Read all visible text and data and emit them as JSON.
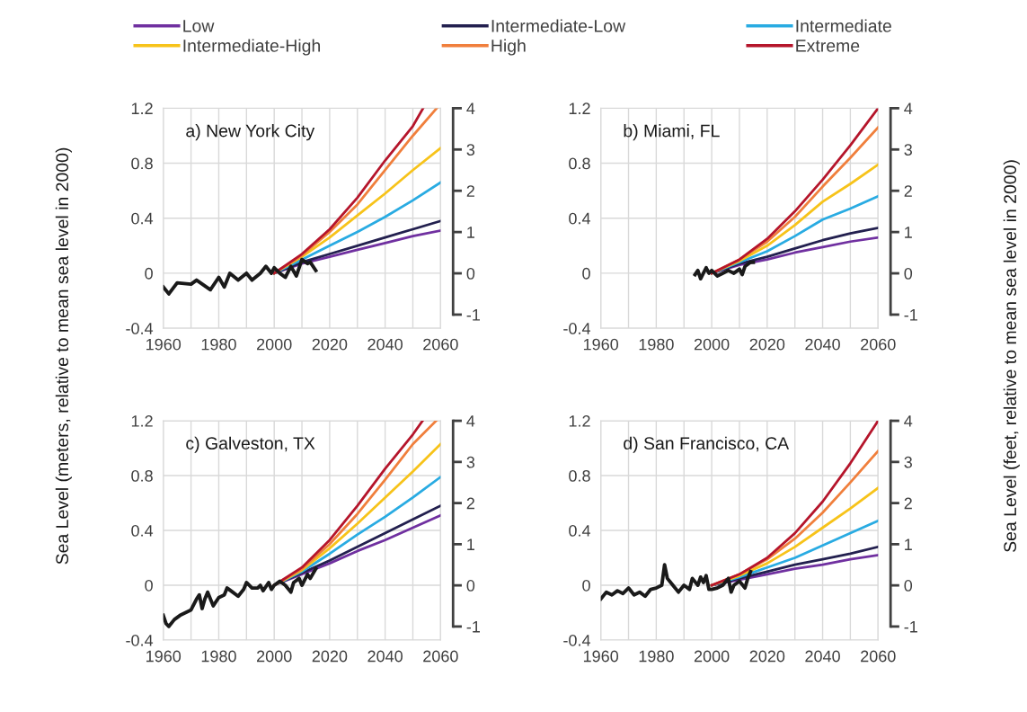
{
  "chart_data": [
    {
      "type": "line",
      "title": "a) New York City",
      "ylabel": "Sea Level (meters, relative to mean sea level in 2000)",
      "legend": "top",
      "grid": true,
      "xlim": [
        1960,
        2060
      ],
      "xticks": [
        1960,
        {
          "value": 1970,
          "label": null
        },
        1980,
        {
          "value": 1990,
          "label": null
        },
        2000,
        {
          "value": 2010,
          "label": null
        },
        2020,
        {
          "value": 2030,
          "label": null
        },
        2040,
        {
          "value": 2050,
          "label": null
        },
        2060
      ],
      "ylim": [
        -0.4,
        1.2
      ],
      "yticks": [
        -0.4,
        0,
        0.4,
        0.8,
        1.2
      ],
      "y2lim": [
        -1.33,
        4.0
      ],
      "y2ticks": [
        -1,
        0,
        1,
        2,
        3,
        4
      ],
      "series": [
        {
          "name": "Low",
          "color": "#7030a0",
          "x": [
            2000,
            2010,
            2020,
            2030,
            2040,
            2050,
            2060
          ],
          "values": [
            0,
            0.07,
            0.12,
            0.17,
            0.22,
            0.27,
            0.31
          ]
        },
        {
          "name": "Intermediate-Low",
          "color": "#23204f",
          "x": [
            2000,
            2010,
            2020,
            2030,
            2040,
            2050,
            2060
          ],
          "values": [
            0,
            0.08,
            0.14,
            0.2,
            0.26,
            0.32,
            0.38
          ]
        },
        {
          "name": "Intermediate",
          "color": "#29abe2",
          "x": [
            2000,
            2010,
            2020,
            2030,
            2040,
            2050,
            2060
          ],
          "values": [
            0,
            0.1,
            0.2,
            0.3,
            0.41,
            0.53,
            0.66
          ]
        },
        {
          "name": "Intermediate-High",
          "color": "#f7c31a",
          "x": [
            2000,
            2010,
            2020,
            2030,
            2040,
            2050,
            2060
          ],
          "values": [
            0,
            0.12,
            0.26,
            0.42,
            0.58,
            0.75,
            0.91
          ]
        },
        {
          "name": "High",
          "color": "#f07f3c",
          "x": [
            2000,
            2010,
            2020,
            2030,
            2040,
            2050,
            2058.6
          ],
          "values": [
            0,
            0.13,
            0.3,
            0.5,
            0.75,
            1.0,
            1.2
          ]
        },
        {
          "name": "Extreme",
          "color": "#b5152b",
          "x": [
            2000,
            2010,
            2020,
            2030,
            2040,
            2050,
            2053.7
          ],
          "values": [
            0,
            0.14,
            0.32,
            0.55,
            0.82,
            1.07,
            1.2
          ]
        },
        {
          "color": "#1a1a1a",
          "x": [
            1960,
            1962,
            1965,
            1970,
            1972,
            1977,
            1980,
            1982,
            1984,
            1987,
            1990,
            1992,
            1995,
            1997,
            1999,
            2000,
            2002,
            2004,
            2006,
            2008,
            2010,
            2012,
            2013,
            2015
          ],
          "values": [
            -0.1,
            -0.15,
            -0.07,
            -0.08,
            -0.05,
            -0.12,
            -0.03,
            -0.1,
            0.0,
            -0.05,
            0.0,
            -0.05,
            0.0,
            0.05,
            0.0,
            0.04,
            0.0,
            -0.03,
            0.05,
            -0.02,
            0.1,
            0.07,
            0.08,
            0.02
          ]
        }
      ]
    },
    {
      "type": "line",
      "title": "b) Miami, FL",
      "y2label": "Sea Level (feet, relative to mean sea level in 2000)",
      "grid": true,
      "xlim": [
        1960,
        2060
      ],
      "xticks": [
        1960,
        {
          "value": 1970,
          "label": null
        },
        1980,
        {
          "value": 1990,
          "label": null
        },
        2000,
        {
          "value": 2010,
          "label": null
        },
        2020,
        {
          "value": 2030,
          "label": null
        },
        2040,
        {
          "value": 2050,
          "label": null
        },
        2060
      ],
      "ylim": [
        -0.4,
        1.2
      ],
      "yticks": [
        -0.4,
        0,
        0.4,
        0.8,
        1.2
      ],
      "y2lim": [
        -1.33,
        4.0
      ],
      "y2ticks": [
        -1,
        0,
        1,
        2,
        3,
        4
      ],
      "series": [
        {
          "color": "#7030a0",
          "x": [
            2000,
            2010,
            2020,
            2030,
            2040,
            2050,
            2060
          ],
          "values": [
            0,
            0.06,
            0.1,
            0.15,
            0.19,
            0.23,
            0.26
          ]
        },
        {
          "color": "#23204f",
          "x": [
            2000,
            2010,
            2020,
            2030,
            2040,
            2050,
            2060
          ],
          "values": [
            0,
            0.07,
            0.12,
            0.18,
            0.24,
            0.29,
            0.33
          ]
        },
        {
          "color": "#29abe2",
          "x": [
            2000,
            2010,
            2020,
            2030,
            2040,
            2050,
            2060
          ],
          "values": [
            0,
            0.08,
            0.16,
            0.27,
            0.39,
            0.47,
            0.56
          ]
        },
        {
          "color": "#f7c31a",
          "x": [
            2000,
            2010,
            2020,
            2030,
            2040,
            2050,
            2060
          ],
          "values": [
            0,
            0.09,
            0.2,
            0.35,
            0.52,
            0.65,
            0.79
          ]
        },
        {
          "color": "#f07f3c",
          "x": [
            2000,
            2010,
            2020,
            2030,
            2040,
            2050,
            2060
          ],
          "values": [
            0,
            0.1,
            0.23,
            0.41,
            0.63,
            0.84,
            1.06
          ]
        },
        {
          "color": "#b5152b",
          "x": [
            2000,
            2010,
            2020,
            2030,
            2040,
            2050,
            2060
          ],
          "values": [
            0,
            0.1,
            0.25,
            0.45,
            0.68,
            0.93,
            1.2
          ]
        },
        {
          "color": "#1a1a1a",
          "x": [
            1994,
            1995,
            1996,
            1997,
            1998,
            1999,
            2000,
            2002,
            2004,
            2006,
            2008,
            2010,
            2011,
            2012,
            2014,
            2015
          ],
          "values": [
            -0.01,
            0.02,
            -0.04,
            0.0,
            0.04,
            0.0,
            0.02,
            -0.02,
            0.0,
            0.02,
            0.0,
            0.03,
            -0.01,
            0.05,
            0.08,
            0.08
          ]
        }
      ]
    },
    {
      "type": "line",
      "title": "c) Galveston, TX",
      "grid": true,
      "xlim": [
        1960,
        2060
      ],
      "xticks": [
        1960,
        {
          "value": 1970,
          "label": null
        },
        1980,
        {
          "value": 1990,
          "label": null
        },
        2000,
        {
          "value": 2010,
          "label": null
        },
        2020,
        {
          "value": 2030,
          "label": null
        },
        2040,
        {
          "value": 2050,
          "label": null
        },
        2060
      ],
      "ylim": [
        -0.4,
        1.2
      ],
      "yticks": [
        -0.4,
        0,
        0.4,
        0.8,
        1.2
      ],
      "y2lim": [
        -1.33,
        4.0
      ],
      "y2ticks": [
        -1,
        0,
        1,
        2,
        3,
        4
      ],
      "series": [
        {
          "color": "#7030a0",
          "x": [
            2000,
            2010,
            2020,
            2030,
            2040,
            2050,
            2060
          ],
          "values": [
            0,
            0.08,
            0.16,
            0.25,
            0.33,
            0.42,
            0.51
          ]
        },
        {
          "color": "#23204f",
          "x": [
            2000,
            2010,
            2020,
            2030,
            2040,
            2050,
            2060
          ],
          "values": [
            0,
            0.09,
            0.18,
            0.28,
            0.38,
            0.48,
            0.58
          ]
        },
        {
          "color": "#29abe2",
          "x": [
            2000,
            2010,
            2020,
            2030,
            2040,
            2050,
            2060
          ],
          "values": [
            0,
            0.1,
            0.23,
            0.37,
            0.5,
            0.64,
            0.79
          ]
        },
        {
          "color": "#f7c31a",
          "x": [
            2000,
            2010,
            2020,
            2030,
            2040,
            2050,
            2060
          ],
          "values": [
            0,
            0.11,
            0.27,
            0.45,
            0.64,
            0.83,
            1.03
          ]
        },
        {
          "color": "#f07f3c",
          "x": [
            2000,
            2010,
            2020,
            2030,
            2040,
            2050,
            2058.4
          ],
          "values": [
            0,
            0.12,
            0.3,
            0.52,
            0.77,
            1.03,
            1.2
          ]
        },
        {
          "color": "#b5152b",
          "x": [
            2000,
            2010,
            2020,
            2030,
            2040,
            2050,
            2053.5
          ],
          "values": [
            0,
            0.13,
            0.33,
            0.58,
            0.85,
            1.1,
            1.2
          ]
        },
        {
          "color": "#1a1a1a",
          "x": [
            1960,
            1961,
            1962,
            1964,
            1966,
            1968,
            1970,
            1972,
            1973,
            1974,
            1975,
            1976,
            1978,
            1980,
            1982,
            1983,
            1985,
            1987,
            1989,
            1990,
            1992,
            1994,
            1995,
            1996,
            1998,
            1999,
            2000,
            2002,
            2004,
            2006,
            2007,
            2009,
            2010,
            2012,
            2013,
            2015
          ],
          "values": [
            -0.22,
            -0.28,
            -0.3,
            -0.25,
            -0.22,
            -0.2,
            -0.18,
            -0.1,
            -0.07,
            -0.17,
            -0.1,
            -0.05,
            -0.15,
            -0.09,
            -0.07,
            -0.02,
            -0.05,
            -0.08,
            -0.03,
            0.02,
            -0.02,
            -0.02,
            0.0,
            -0.04,
            0.02,
            -0.03,
            0.0,
            0.03,
            0.0,
            -0.05,
            0.02,
            0.05,
            0.0,
            0.08,
            0.05,
            0.12
          ]
        }
      ]
    },
    {
      "type": "line",
      "title": "d) San Francisco, CA",
      "grid": true,
      "xlim": [
        1960,
        2060
      ],
      "xticks": [
        1960,
        {
          "value": 1970,
          "label": null
        },
        1980,
        {
          "value": 1990,
          "label": null
        },
        2000,
        {
          "value": 2010,
          "label": null
        },
        2020,
        {
          "value": 2030,
          "label": null
        },
        2040,
        {
          "value": 2050,
          "label": null
        },
        2060
      ],
      "ylim": [
        -0.4,
        1.2
      ],
      "yticks": [
        -0.4,
        0,
        0.4,
        0.8,
        1.2
      ],
      "y2lim": [
        -1.33,
        4.0
      ],
      "y2ticks": [
        -1,
        0,
        1,
        2,
        3,
        4
      ],
      "series": [
        {
          "color": "#7030a0",
          "x": [
            2000,
            2010,
            2020,
            2030,
            2040,
            2050,
            2060
          ],
          "values": [
            0,
            0.04,
            0.08,
            0.12,
            0.15,
            0.19,
            0.22
          ]
        },
        {
          "color": "#23204f",
          "x": [
            2000,
            2010,
            2020,
            2030,
            2040,
            2050,
            2060
          ],
          "values": [
            0,
            0.05,
            0.1,
            0.15,
            0.19,
            0.23,
            0.28
          ]
        },
        {
          "color": "#29abe2",
          "x": [
            2000,
            2010,
            2020,
            2030,
            2040,
            2050,
            2060
          ],
          "values": [
            0,
            0.06,
            0.13,
            0.2,
            0.29,
            0.38,
            0.47
          ]
        },
        {
          "color": "#f7c31a",
          "x": [
            2000,
            2010,
            2020,
            2030,
            2040,
            2050,
            2060
          ],
          "values": [
            0,
            0.07,
            0.16,
            0.28,
            0.42,
            0.56,
            0.71
          ]
        },
        {
          "color": "#f07f3c",
          "x": [
            2000,
            2010,
            2020,
            2030,
            2040,
            2050,
            2060
          ],
          "values": [
            0,
            0.08,
            0.19,
            0.34,
            0.53,
            0.75,
            0.98
          ]
        },
        {
          "color": "#b5152b",
          "x": [
            2000,
            2010,
            2020,
            2030,
            2040,
            2050,
            2060
          ],
          "values": [
            0,
            0.08,
            0.2,
            0.38,
            0.61,
            0.89,
            1.2
          ]
        },
        {
          "color": "#1a1a1a",
          "x": [
            1960,
            1962,
            1964,
            1966,
            1968,
            1970,
            1972,
            1974,
            1976,
            1978,
            1980,
            1982,
            1983,
            1984,
            1986,
            1988,
            1990,
            1992,
            1993,
            1995,
            1996,
            1997,
            1998,
            1999,
            2000,
            2002,
            2004,
            2006,
            2007,
            2008,
            2010,
            2012,
            2013,
            2014
          ],
          "values": [
            -0.1,
            -0.05,
            -0.07,
            -0.04,
            -0.06,
            -0.02,
            -0.07,
            -0.05,
            -0.08,
            -0.03,
            -0.02,
            0.0,
            0.15,
            0.05,
            0.0,
            -0.05,
            0.0,
            -0.03,
            0.05,
            0.0,
            0.06,
            0.02,
            0.07,
            -0.03,
            -0.03,
            -0.02,
            0.0,
            0.05,
            -0.05,
            0.0,
            0.03,
            -0.02,
            0.05,
            0.1
          ]
        }
      ]
    }
  ]
}
